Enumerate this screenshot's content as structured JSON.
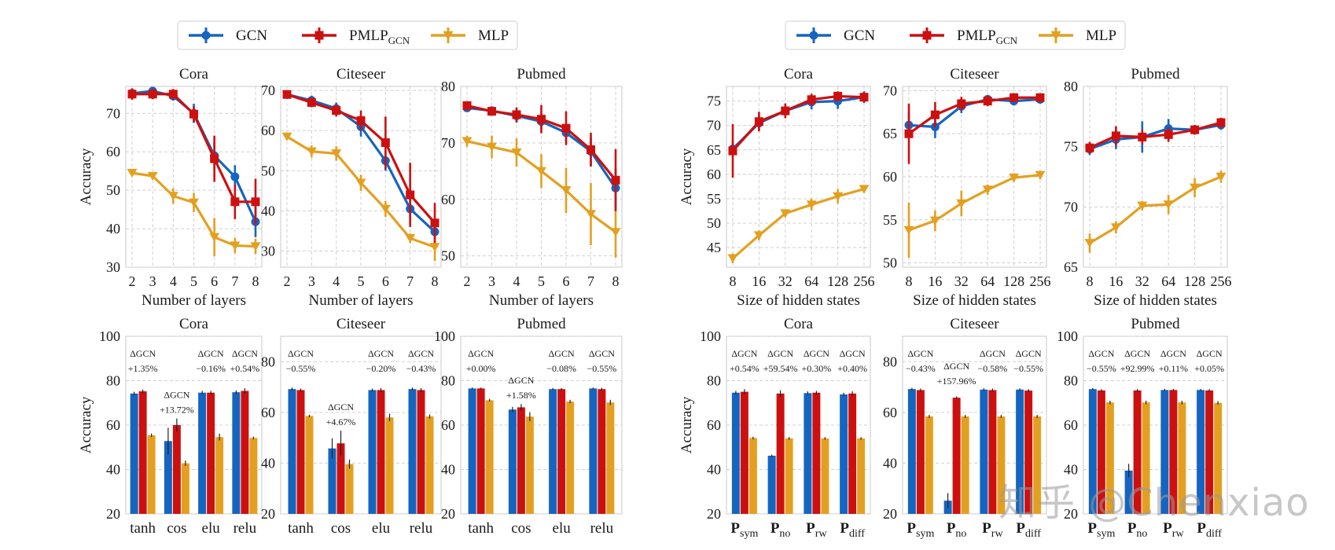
{
  "colors": {
    "gcn": "#1565c0",
    "pmlp": "#cc1010",
    "mlp": "#e3a020",
    "grid": "#d0d0d0",
    "axis": "#c8c8c8"
  },
  "legend": {
    "gcn_label": "GCN",
    "pmlp_label": "PMLP",
    "pmlp_sub": "GCN",
    "mlp_label": "MLP"
  },
  "watermark": "知乎 @Chenxiao",
  "chart_data": [
    {
      "type": "line",
      "title": "Cora",
      "xlabel": "Number of layers",
      "ylabel": "Accuracy",
      "categories": [
        "2",
        "3",
        "4",
        "5",
        "6",
        "7",
        "8"
      ],
      "ylim": [
        30,
        77
      ],
      "yticks": [
        30,
        40,
        50,
        60,
        70
      ],
      "series": [
        {
          "name": "GCN",
          "values": [
            75.2,
            75.8,
            74.5,
            70.0,
            59.0,
            53.5,
            41.8
          ],
          "errors": [
            1.2,
            1.0,
            1.2,
            2.5,
            3.5,
            3.0,
            4.0
          ]
        },
        {
          "name": "PMLP",
          "values": [
            75.0,
            75.0,
            75.0,
            69.8,
            58.2,
            47.0,
            47.0
          ],
          "errors": [
            1.5,
            1.3,
            1.3,
            2.0,
            6.0,
            4.5,
            6.0
          ]
        },
        {
          "name": "MLP",
          "values": [
            54.5,
            53.7,
            48.5,
            46.8,
            37.8,
            35.6,
            35.4
          ],
          "errors": [
            0.8,
            0.8,
            2.0,
            2.5,
            5.0,
            2.0,
            2.0
          ]
        }
      ]
    },
    {
      "type": "line",
      "title": "Citeseer",
      "xlabel": "Number of layers",
      "ylabel": "",
      "categories": [
        "2",
        "3",
        "4",
        "5",
        "6",
        "7",
        "8"
      ],
      "ylim": [
        26,
        71
      ],
      "yticks": [
        30,
        40,
        50,
        60,
        70
      ],
      "series": [
        {
          "name": "GCN",
          "values": [
            69.0,
            67.5,
            65.5,
            61.0,
            52.5,
            40.5,
            34.8
          ],
          "errors": [
            0.8,
            1.2,
            1.5,
            2.5,
            2.5,
            2.5,
            1.5
          ]
        },
        {
          "name": "PMLP",
          "values": [
            69.0,
            67.0,
            65.0,
            62.5,
            57.0,
            44.0,
            37.0
          ],
          "errors": [
            1.0,
            1.2,
            1.5,
            2.5,
            6.5,
            8.0,
            5.0
          ]
        },
        {
          "name": "MLP",
          "values": [
            58.5,
            54.8,
            54.3,
            47.0,
            40.5,
            33.2,
            31.0
          ],
          "errors": [
            0.6,
            1.5,
            1.8,
            2.0,
            2.0,
            1.2,
            3.5
          ]
        }
      ]
    },
    {
      "type": "line",
      "title": "Pubmed",
      "xlabel": "Number of layers",
      "ylabel": "",
      "categories": [
        "2",
        "3",
        "4",
        "5",
        "6",
        "7",
        "8"
      ],
      "ylim": [
        48,
        80
      ],
      "yticks": [
        50,
        60,
        70,
        80
      ],
      "series": [
        {
          "name": "GCN",
          "values": [
            76.2,
            75.7,
            74.8,
            73.8,
            71.8,
            68.5,
            62.0
          ],
          "errors": [
            0.6,
            0.6,
            1.2,
            1.5,
            1.5,
            2.5,
            3.5
          ]
        },
        {
          "name": "PMLP",
          "values": [
            76.6,
            75.6,
            75.0,
            74.2,
            72.6,
            68.8,
            63.4
          ],
          "errors": [
            0.8,
            0.8,
            1.3,
            2.5,
            3.0,
            3.0,
            5.5
          ]
        },
        {
          "name": "MLP",
          "values": [
            70.3,
            69.3,
            68.3,
            65.0,
            61.6,
            57.4,
            54.2
          ],
          "errors": [
            1.0,
            2.0,
            2.5,
            3.0,
            4.0,
            5.5,
            4.5
          ]
        }
      ]
    },
    {
      "type": "line",
      "title": "Cora",
      "xlabel": "Size of hidden states",
      "ylabel": "Accuracy",
      "categories": [
        "8",
        "16",
        "32",
        "64",
        "128",
        "256"
      ],
      "ylim": [
        41,
        78
      ],
      "yticks": [
        45,
        50,
        55,
        60,
        65,
        70,
        75
      ],
      "series": [
        {
          "name": "GCN",
          "values": [
            65.2,
            70.5,
            73.0,
            74.8,
            75.0,
            75.8
          ],
          "errors": [
            1.5,
            1.5,
            1.5,
            1.5,
            1.6,
            1.2
          ]
        },
        {
          "name": "PMLP",
          "values": [
            64.8,
            70.8,
            73.0,
            75.3,
            76.0,
            75.8
          ],
          "errors": [
            5.5,
            2.0,
            1.5,
            1.2,
            1.0,
            1.0
          ]
        },
        {
          "name": "MLP",
          "values": [
            42.8,
            47.5,
            52.0,
            53.8,
            55.5,
            57.0
          ],
          "errors": [
            1.0,
            1.0,
            0.8,
            1.2,
            1.5,
            0.8
          ]
        }
      ]
    },
    {
      "type": "line",
      "title": "Citeseer",
      "xlabel": "Size of hidden states",
      "ylabel": "",
      "categories": [
        "8",
        "16",
        "32",
        "64",
        "128",
        "256"
      ],
      "ylim": [
        49.5,
        70.5
      ],
      "yticks": [
        50,
        55,
        60,
        65,
        70
      ],
      "series": [
        {
          "name": "GCN",
          "values": [
            66.0,
            65.8,
            68.2,
            69.0,
            68.8,
            69.0
          ],
          "errors": [
            1.5,
            1.3,
            0.8,
            0.5,
            0.5,
            0.5
          ]
        },
        {
          "name": "PMLP",
          "values": [
            65.0,
            67.2,
            68.5,
            68.8,
            69.2,
            69.2
          ],
          "errors": [
            3.5,
            1.5,
            0.8,
            0.6,
            0.5,
            0.5
          ]
        },
        {
          "name": "MLP",
          "values": [
            53.8,
            54.9,
            56.9,
            58.5,
            59.9,
            60.2
          ],
          "errors": [
            3.2,
            1.2,
            1.5,
            0.6,
            0.5,
            0.5
          ]
        }
      ]
    },
    {
      "type": "line",
      "title": "Pubmed",
      "xlabel": "Size of hidden states",
      "ylabel": "",
      "categories": [
        "8",
        "16",
        "32",
        "64",
        "128",
        "256"
      ],
      "ylim": [
        65,
        80
      ],
      "yticks": [
        65,
        70,
        75,
        80
      ],
      "series": [
        {
          "name": "GCN",
          "values": [
            74.8,
            75.6,
            75.8,
            76.5,
            76.4,
            76.8
          ],
          "errors": [
            0.5,
            0.8,
            1.3,
            0.8,
            0.4,
            0.4
          ]
        },
        {
          "name": "PMLP",
          "values": [
            74.9,
            75.9,
            75.8,
            76.0,
            76.4,
            77.0
          ],
          "errors": [
            0.5,
            0.8,
            0.6,
            0.6,
            0.4,
            0.4
          ]
        },
        {
          "name": "MLP",
          "values": [
            67.0,
            68.3,
            70.1,
            70.2,
            71.6,
            72.5
          ],
          "errors": [
            0.8,
            0.5,
            0.4,
            0.8,
            0.8,
            0.5
          ]
        }
      ]
    },
    {
      "type": "bar",
      "title": "Cora",
      "xlabel": "",
      "ylabel": "Accuracy",
      "categories": [
        {
          "main": "tanh",
          "sub": ""
        },
        {
          "main": "cos",
          "sub": ""
        },
        {
          "main": "elu",
          "sub": ""
        },
        {
          "main": "relu",
          "sub": ""
        }
      ],
      "ylim": [
        20,
        100
      ],
      "yticks": [
        20,
        40,
        60,
        80,
        100
      ],
      "series": [
        {
          "name": "GCN",
          "values": [
            74.2,
            52.8,
            74.6,
            74.8
          ],
          "errors": [
            0.8,
            6.0,
            0.8,
            0.8
          ]
        },
        {
          "name": "PMLP",
          "values": [
            75.2,
            60.0,
            74.6,
            75.4
          ],
          "errors": [
            0.8,
            3.0,
            0.8,
            1.2
          ]
        },
        {
          "name": "MLP",
          "values": [
            55.4,
            42.8,
            54.6,
            54.2
          ],
          "errors": [
            0.8,
            1.2,
            1.5,
            0.6
          ]
        }
      ],
      "annotations": [
        {
          "label": "ΔGCN",
          "value": "+1.35%",
          "level": "high"
        },
        {
          "label": "ΔGCN",
          "value": "+13.72%",
          "level": "low"
        },
        {
          "label": "ΔGCN",
          "value": "−0.16%",
          "level": "high"
        },
        {
          "label": "ΔGCN",
          "value": "+0.54%",
          "level": "high"
        }
      ]
    },
    {
      "type": "bar",
      "title": "Citeseer",
      "xlabel": "",
      "ylabel": "",
      "categories": [
        {
          "main": "tanh",
          "sub": ""
        },
        {
          "main": "cos",
          "sub": ""
        },
        {
          "main": "elu",
          "sub": ""
        },
        {
          "main": "relu",
          "sub": ""
        }
      ],
      "ylim": [
        20,
        90
      ],
      "yticks": [
        20,
        40,
        60,
        80
      ],
      "series": [
        {
          "name": "GCN",
          "values": [
            69.2,
            45.8,
            68.8,
            69.2
          ],
          "errors": [
            0.6,
            4.0,
            0.6,
            0.6
          ]
        },
        {
          "name": "PMLP",
          "values": [
            68.8,
            47.8,
            68.8,
            68.8
          ],
          "errors": [
            0.6,
            5.0,
            0.8,
            0.8
          ]
        },
        {
          "name": "MLP",
          "values": [
            58.6,
            39.6,
            58.0,
            58.4
          ],
          "errors": [
            0.5,
            1.8,
            1.5,
            0.8
          ]
        }
      ],
      "annotations": [
        {
          "label": "ΔGCN",
          "value": "−0.55%",
          "level": "high"
        },
        {
          "label": "ΔGCN",
          "value": "+4.67%",
          "level": "low"
        },
        {
          "label": "ΔGCN",
          "value": "−0.20%",
          "level": "high"
        },
        {
          "label": "ΔGCN",
          "value": "−0.43%",
          "level": "high"
        }
      ]
    },
    {
      "type": "bar",
      "title": "Pubmed",
      "xlabel": "",
      "ylabel": "",
      "categories": [
        {
          "main": "tanh",
          "sub": ""
        },
        {
          "main": "cos",
          "sub": ""
        },
        {
          "main": "elu",
          "sub": ""
        },
        {
          "main": "relu",
          "sub": ""
        }
      ],
      "ylim": [
        20,
        100
      ],
      "yticks": [
        20,
        40,
        60,
        80,
        100
      ],
      "series": [
        {
          "name": "GCN",
          "values": [
            76.5,
            67.0,
            76.2,
            76.5
          ],
          "errors": [
            0.4,
            1.2,
            0.5,
            0.4
          ]
        },
        {
          "name": "PMLP",
          "values": [
            76.5,
            68.0,
            76.2,
            76.2
          ],
          "errors": [
            0.4,
            1.5,
            0.5,
            0.6
          ]
        },
        {
          "name": "MLP",
          "values": [
            71.2,
            63.8,
            70.6,
            70.2
          ],
          "errors": [
            0.6,
            2.0,
            0.8,
            1.2
          ]
        }
      ],
      "annotations": [
        {
          "label": "ΔGCN",
          "value": "+0.00%",
          "level": "high"
        },
        {
          "label": "ΔGCN",
          "value": "+1.58%",
          "level": "low"
        },
        {
          "label": "ΔGCN",
          "value": "−0.08%",
          "level": "high"
        },
        {
          "label": "ΔGCN",
          "value": "−0.55%",
          "level": "high"
        }
      ]
    },
    {
      "type": "bar",
      "title": "Cora",
      "xlabel": "",
      "ylabel": "Accuracy",
      "categories": [
        {
          "main": "P",
          "sub": "sym"
        },
        {
          "main": "P",
          "sub": "no"
        },
        {
          "main": "P",
          "sub": "rw"
        },
        {
          "main": "P",
          "sub": "diff"
        }
      ],
      "ylim": [
        20,
        100
      ],
      "yticks": [
        20,
        40,
        60,
        80,
        100
      ],
      "series": [
        {
          "name": "GCN",
          "values": [
            74.6,
            46.2,
            74.4,
            73.8
          ],
          "errors": [
            0.8,
            0.5,
            0.8,
            0.8
          ]
        },
        {
          "name": "PMLP",
          "values": [
            75.0,
            74.2,
            74.6,
            74.2
          ],
          "errors": [
            1.2,
            1.5,
            0.8,
            1.0
          ]
        },
        {
          "name": "MLP",
          "values": [
            54.2,
            54.0,
            54.0,
            54.0
          ],
          "errors": [
            0.6,
            0.6,
            0.6,
            0.6
          ]
        }
      ],
      "annotations": [
        {
          "label": "ΔGCN",
          "value": "+0.54%",
          "level": "high"
        },
        {
          "label": "ΔGCN",
          "value": "+59.54%",
          "level": "high"
        },
        {
          "label": "ΔGCN",
          "value": "+0.30%",
          "level": "high"
        },
        {
          "label": "ΔGCN",
          "value": "+0.40%",
          "level": "high"
        }
      ]
    },
    {
      "type": "bar",
      "title": "Citeseer",
      "xlabel": "",
      "ylabel": "",
      "categories": [
        {
          "main": "P",
          "sub": "sym"
        },
        {
          "main": "P",
          "sub": "no"
        },
        {
          "main": "P",
          "sub": "rw"
        },
        {
          "main": "P",
          "sub": "diff"
        }
      ],
      "ylim": [
        20,
        90
      ],
      "yticks": [
        20,
        40,
        60,
        80
      ],
      "series": [
        {
          "name": "GCN",
          "values": [
            69.2,
            25.2,
            69.0,
            69.0
          ],
          "errors": [
            0.5,
            3.0,
            0.5,
            0.5
          ]
        },
        {
          "name": "PMLP",
          "values": [
            68.8,
            65.8,
            68.8,
            68.6
          ],
          "errors": [
            0.6,
            0.5,
            0.6,
            0.6
          ]
        },
        {
          "name": "MLP",
          "values": [
            58.4,
            58.4,
            58.4,
            58.4
          ],
          "errors": [
            0.6,
            0.6,
            0.6,
            0.6
          ]
        }
      ],
      "annotations": [
        {
          "label": "ΔGCN",
          "value": "−0.43%",
          "level": "high"
        },
        {
          "label": "ΔGCN",
          "value": "+157.96%",
          "level": "mid"
        },
        {
          "label": "ΔGCN",
          "value": "−0.58%",
          "level": "high"
        },
        {
          "label": "ΔGCN",
          "value": "−0.55%",
          "level": "high"
        }
      ]
    },
    {
      "type": "bar",
      "title": "Pubmed",
      "xlabel": "",
      "ylabel": "",
      "categories": [
        {
          "main": "P",
          "sub": "sym"
        },
        {
          "main": "P",
          "sub": "no"
        },
        {
          "main": "P",
          "sub": "rw"
        },
        {
          "main": "P",
          "sub": "diff"
        }
      ],
      "ylim": [
        20,
        100
      ],
      "yticks": [
        20,
        40,
        60,
        80,
        100
      ],
      "series": [
        {
          "name": "GCN",
          "values": [
            76.2,
            39.5,
            75.8,
            75.8
          ],
          "errors": [
            0.5,
            3.0,
            0.5,
            0.5
          ]
        },
        {
          "name": "PMLP",
          "values": [
            75.6,
            75.6,
            75.8,
            75.6
          ],
          "errors": [
            0.6,
            0.6,
            0.5,
            0.6
          ]
        },
        {
          "name": "MLP",
          "values": [
            70.2,
            70.2,
            70.2,
            70.0
          ],
          "errors": [
            0.8,
            0.8,
            0.8,
            0.8
          ]
        }
      ],
      "annotations": [
        {
          "label": "ΔGCN",
          "value": "−0.55%",
          "level": "high"
        },
        {
          "label": "ΔGCN",
          "value": "+92.99%",
          "level": "high"
        },
        {
          "label": "ΔGCN",
          "value": "+0.11%",
          "level": "high"
        },
        {
          "label": "ΔGCN",
          "value": "+0.05%",
          "level": "high"
        }
      ]
    }
  ]
}
